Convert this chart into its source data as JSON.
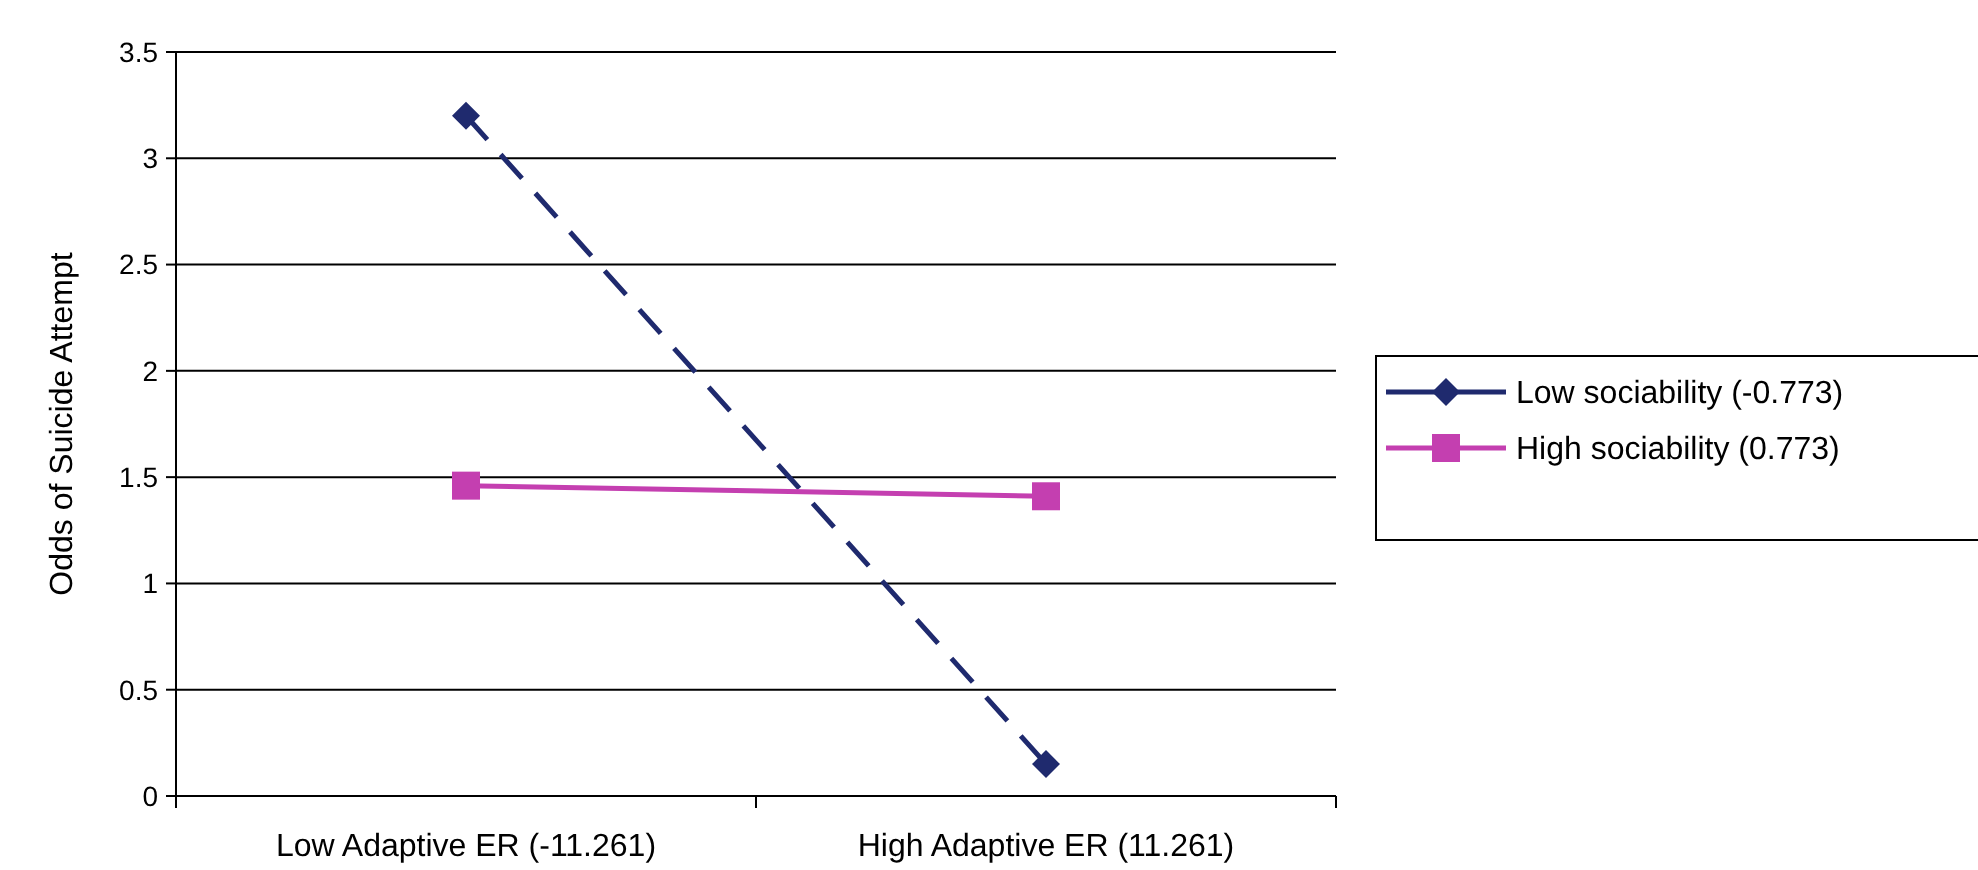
{
  "chart_data": {
    "type": "line",
    "ylabel": "Odds of Suicide Attempt",
    "categories": [
      "Low Adaptive ER (-11.261)",
      "High Adaptive ER (11.261)"
    ],
    "series": [
      {
        "name": "Low sociability (-0.773)",
        "color": "#1f2a6e",
        "values": [
          3.2,
          0.15
        ],
        "marker": "diamond",
        "line_style": "dashed"
      },
      {
        "name": "High sociability (0.773)",
        "color": "#c43fb0",
        "values": [
          1.46,
          1.41
        ],
        "marker": "square",
        "line_style": "solid"
      }
    ],
    "ylim": [
      0,
      3.5
    ],
    "yticks": [
      0,
      0.5,
      1,
      1.5,
      2,
      2.5,
      3,
      3.5
    ],
    "grid": "y",
    "legend": "right"
  }
}
